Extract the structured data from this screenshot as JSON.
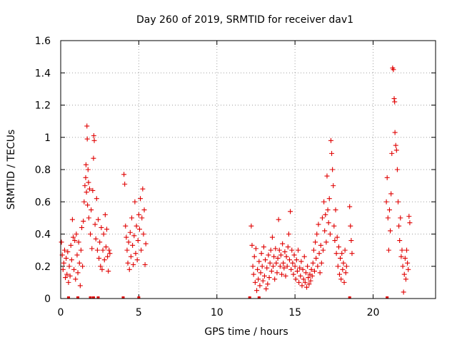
{
  "chart_data": {
    "type": "scatter",
    "title": "Day 260 of 2019, SRMTID for receiver dav1",
    "xlabel": "GPS time / hours",
    "ylabel": "SRMTID / TECUs",
    "xlim": [
      0,
      24
    ],
    "ylim": [
      0,
      1.6
    ],
    "xticks": [
      0,
      5,
      10,
      15,
      20
    ],
    "yticks": [
      0,
      0.2,
      0.4,
      0.6,
      0.8,
      1,
      1.2,
      1.4,
      1.6
    ],
    "xtick_labels": [
      "0",
      "5",
      "10",
      "15",
      "20"
    ],
    "ytick_labels": [
      "0",
      "0.2",
      "0.4",
      "0.6",
      "0.8",
      "1",
      "1.2",
      "1.4",
      "1.6"
    ],
    "grid": true,
    "marker": "+",
    "color": "#e00000",
    "series": [
      {
        "name": "SRMTID",
        "points": [
          [
            0.05,
            0.35
          ],
          [
            0.1,
            0.27
          ],
          [
            0.15,
            0.18
          ],
          [
            0.2,
            0.22
          ],
          [
            0.25,
            0.3
          ],
          [
            0.3,
            0.13
          ],
          [
            0.35,
            0.25
          ],
          [
            0.4,
            0.15
          ],
          [
            0.45,
            0.29
          ],
          [
            0.5,
            0.1
          ],
          [
            0.55,
            0.2
          ],
          [
            0.6,
            0.14
          ],
          [
            0.65,
            0.33
          ],
          [
            0.7,
            0.24
          ],
          [
            0.75,
            0.49
          ],
          [
            0.8,
            0.38
          ],
          [
            0.85,
            0.18
          ],
          [
            0.9,
            0.36
          ],
          [
            0.95,
            0.12
          ],
          [
            1.0,
            0.4
          ],
          [
            1.05,
            0.27
          ],
          [
            1.1,
            0.16
          ],
          [
            1.15,
            0.35
          ],
          [
            1.2,
            0.22
          ],
          [
            1.25,
            0.08
          ],
          [
            1.3,
            0.3
          ],
          [
            1.35,
            0.44
          ],
          [
            1.4,
            0.2
          ],
          [
            1.45,
            0.48
          ],
          [
            1.5,
            0.6
          ],
          [
            1.55,
            0.7
          ],
          [
            1.6,
            0.75
          ],
          [
            1.62,
            0.83
          ],
          [
            1.65,
            0.66
          ],
          [
            1.68,
            1.07
          ],
          [
            1.7,
            0.99
          ],
          [
            1.72,
            0.58
          ],
          [
            1.75,
            0.8
          ],
          [
            1.78,
            0.72
          ],
          [
            1.8,
            0.5
          ],
          [
            1.85,
            0.68
          ],
          [
            1.9,
            0.4
          ],
          [
            1.95,
            0.55
          ],
          [
            2.0,
            0.31
          ],
          [
            2.05,
            0.67
          ],
          [
            2.1,
            0.87
          ],
          [
            2.12,
            1.01
          ],
          [
            2.15,
            0.98
          ],
          [
            2.2,
            0.46
          ],
          [
            2.25,
            0.37
          ],
          [
            2.3,
            0.62
          ],
          [
            2.35,
            0.3
          ],
          [
            2.4,
            0.49
          ],
          [
            2.45,
            0.25
          ],
          [
            2.5,
            0.35
          ],
          [
            2.55,
            0.2
          ],
          [
            2.6,
            0.44
          ],
          [
            2.65,
            0.18
          ],
          [
            2.7,
            0.3
          ],
          [
            2.75,
            0.4
          ],
          [
            2.8,
            0.24
          ],
          [
            2.85,
            0.52
          ],
          [
            2.9,
            0.32
          ],
          [
            2.95,
            0.43
          ],
          [
            3.0,
            0.26
          ],
          [
            3.05,
            0.17
          ],
          [
            3.1,
            0.3
          ],
          [
            3.15,
            0.28
          ],
          [
            4.05,
            0.77
          ],
          [
            4.1,
            0.71
          ],
          [
            4.15,
            0.45
          ],
          [
            4.2,
            0.38
          ],
          [
            4.25,
            0.3
          ],
          [
            4.3,
            0.22
          ],
          [
            4.35,
            0.35
          ],
          [
            4.4,
            0.18
          ],
          [
            4.45,
            0.41
          ],
          [
            4.5,
            0.26
          ],
          [
            4.55,
            0.5
          ],
          [
            4.6,
            0.33
          ],
          [
            4.65,
            0.21
          ],
          [
            4.7,
            0.39
          ],
          [
            4.75,
            0.6
          ],
          [
            4.8,
            0.28
          ],
          [
            4.85,
            0.45
          ],
          [
            4.9,
            0.24
          ],
          [
            4.95,
            0.36
          ],
          [
            5.0,
            0.52
          ],
          [
            5.05,
            0.43
          ],
          [
            5.1,
            0.62
          ],
          [
            5.15,
            0.3
          ],
          [
            5.2,
            0.5
          ],
          [
            5.25,
            0.68
          ],
          [
            5.3,
            0.4
          ],
          [
            5.35,
            0.55
          ],
          [
            5.4,
            0.21
          ],
          [
            5.45,
            0.34
          ],
          [
            12.2,
            0.45
          ],
          [
            12.25,
            0.33
          ],
          [
            12.3,
            0.2
          ],
          [
            12.35,
            0.15
          ],
          [
            12.4,
            0.26
          ],
          [
            12.45,
            0.1
          ],
          [
            12.5,
            0.31
          ],
          [
            12.55,
            0.05
          ],
          [
            12.6,
            0.18
          ],
          [
            12.65,
            0.12
          ],
          [
            12.7,
            0.23
          ],
          [
            12.75,
            0.08
          ],
          [
            12.8,
            0.16
          ],
          [
            12.85,
            0.28
          ],
          [
            12.9,
            0.2
          ],
          [
            12.95,
            0.11
          ],
          [
            13.0,
            0.32
          ],
          [
            13.05,
            0.14
          ],
          [
            13.1,
            0.24
          ],
          [
            13.15,
            0.06
          ],
          [
            13.2,
            0.19
          ],
          [
            13.25,
            0.09
          ],
          [
            13.3,
            0.27
          ],
          [
            13.35,
            0.13
          ],
          [
            13.4,
            0.22
          ],
          [
            13.45,
            0.3
          ],
          [
            13.5,
            0.17
          ],
          [
            13.55,
            0.38
          ],
          [
            13.6,
            0.2
          ],
          [
            13.65,
            0.26
          ],
          [
            13.7,
            0.12
          ],
          [
            13.75,
            0.31
          ],
          [
            13.8,
            0.22
          ],
          [
            13.85,
            0.16
          ],
          [
            13.9,
            0.25
          ],
          [
            13.95,
            0.49
          ],
          [
            14.0,
            0.3
          ],
          [
            14.05,
            0.2
          ],
          [
            14.1,
            0.27
          ],
          [
            14.15,
            0.15
          ],
          [
            14.2,
            0.34
          ],
          [
            14.25,
            0.22
          ],
          [
            14.3,
            0.19
          ],
          [
            14.35,
            0.29
          ],
          [
            14.4,
            0.14
          ],
          [
            14.45,
            0.26
          ],
          [
            14.5,
            0.2
          ],
          [
            14.55,
            0.32
          ],
          [
            14.6,
            0.4
          ],
          [
            14.65,
            0.24
          ],
          [
            14.7,
            0.54
          ],
          [
            14.75,
            0.18
          ],
          [
            14.8,
            0.3
          ],
          [
            14.85,
            0.22
          ],
          [
            14.9,
            0.15
          ],
          [
            14.95,
            0.27
          ],
          [
            15.0,
            0.2
          ],
          [
            15.05,
            0.12
          ],
          [
            15.1,
            0.24
          ],
          [
            15.15,
            0.17
          ],
          [
            15.2,
            0.3
          ],
          [
            15.25,
            0.1
          ],
          [
            15.3,
            0.19
          ],
          [
            15.35,
            0.14
          ],
          [
            15.4,
            0.23
          ],
          [
            15.45,
            0.08
          ],
          [
            15.5,
            0.18
          ],
          [
            15.55,
            0.12
          ],
          [
            15.6,
            0.26
          ],
          [
            15.65,
            0.1
          ],
          [
            15.7,
            0.16
          ],
          [
            15.75,
            0.07
          ],
          [
            15.8,
            0.2
          ],
          [
            15.85,
            0.13
          ],
          [
            15.9,
            0.09
          ],
          [
            15.95,
            0.15
          ],
          [
            16.0,
            0.11
          ],
          [
            16.05,
            0.18
          ],
          [
            16.1,
            0.14
          ],
          [
            16.15,
            0.22
          ],
          [
            16.2,
            0.3
          ],
          [
            16.25,
            0.17
          ],
          [
            16.3,
            0.35
          ],
          [
            16.35,
            0.25
          ],
          [
            16.4,
            0.4
          ],
          [
            16.45,
            0.2
          ],
          [
            16.5,
            0.46
          ],
          [
            16.55,
            0.28
          ],
          [
            16.6,
            0.16
          ],
          [
            16.65,
            0.33
          ],
          [
            16.7,
            0.22
          ],
          [
            16.75,
            0.5
          ],
          [
            16.8,
            0.3
          ],
          [
            16.85,
            0.6
          ],
          [
            16.9,
            0.42
          ],
          [
            16.95,
            0.52
          ],
          [
            17.0,
            0.35
          ],
          [
            17.05,
            0.76
          ],
          [
            17.1,
            0.55
          ],
          [
            17.15,
            0.47
          ],
          [
            17.2,
            0.62
          ],
          [
            17.25,
            0.4
          ],
          [
            17.3,
            0.98
          ],
          [
            17.35,
            0.9
          ],
          [
            17.4,
            0.8
          ],
          [
            17.45,
            0.7
          ],
          [
            17.5,
            0.45
          ],
          [
            17.55,
            0.36
          ],
          [
            17.6,
            0.55
          ],
          [
            17.65,
            0.28
          ],
          [
            17.7,
            0.38
          ],
          [
            17.75,
            0.2
          ],
          [
            17.8,
            0.32
          ],
          [
            17.85,
            0.15
          ],
          [
            17.9,
            0.25
          ],
          [
            17.95,
            0.12
          ],
          [
            18.0,
            0.28
          ],
          [
            18.05,
            0.18
          ],
          [
            18.1,
            0.22
          ],
          [
            18.15,
            0.1
          ],
          [
            18.2,
            0.3
          ],
          [
            18.25,
            0.16
          ],
          [
            18.3,
            0.2
          ],
          [
            18.5,
            0.57
          ],
          [
            18.55,
            0.45
          ],
          [
            18.6,
            0.36
          ],
          [
            18.65,
            0.28
          ],
          [
            20.85,
            0.6
          ],
          [
            20.9,
            0.75
          ],
          [
            20.95,
            0.5
          ],
          [
            21.0,
            0.3
          ],
          [
            21.05,
            0.55
          ],
          [
            21.1,
            0.42
          ],
          [
            21.15,
            0.65
          ],
          [
            21.2,
            0.9
          ],
          [
            21.25,
            1.43
          ],
          [
            21.3,
            1.42
          ],
          [
            21.35,
            1.24
          ],
          [
            21.38,
            1.22
          ],
          [
            21.4,
            1.03
          ],
          [
            21.45,
            0.95
          ],
          [
            21.5,
            0.92
          ],
          [
            21.55,
            0.8
          ],
          [
            21.6,
            0.6
          ],
          [
            21.65,
            0.45
          ],
          [
            21.7,
            0.36
          ],
          [
            21.75,
            0.5
          ],
          [
            21.8,
            0.26
          ],
          [
            21.85,
            0.3
          ],
          [
            21.9,
            0.2
          ],
          [
            21.95,
            0.04
          ],
          [
            22.0,
            0.15
          ],
          [
            22.05,
            0.25
          ],
          [
            22.1,
            0.12
          ],
          [
            22.15,
            0.3
          ],
          [
            22.2,
            0.22
          ],
          [
            22.25,
            0.18
          ],
          [
            22.3,
            0.51
          ],
          [
            22.35,
            0.47
          ]
        ]
      }
    ],
    "rug_hours": [
      0.5,
      1.1,
      1.9,
      2.1,
      2.4,
      4.0,
      5.0,
      12.1,
      12.7,
      18.5,
      20.9
    ]
  }
}
